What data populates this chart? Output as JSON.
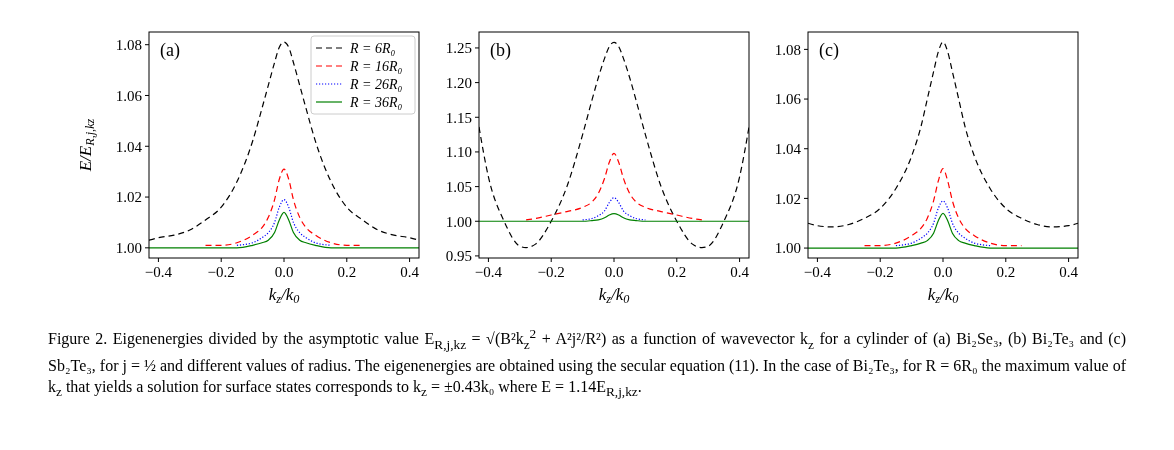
{
  "chart_data": [
    {
      "type": "line",
      "ylabel": "E/E$_{R,j,kz}$",
      "xlabel": "k$_{z}$/k$_{0}$",
      "legend": "top right",
      "annotations": [
        "(a)",
        "Figure 2.  Eigenenergies divided by the asymptotic value E$_{R,j,kz}$ = √(B²k$_{z}$$^{2}$ + A²j²/R²) as a function of wavevector k$_{z}$ for a cylinder of (a) Bi₂Se₃, (b) Bi₂Te₃ and (c) Sb₂Te₃, for j = ½ and different values of radius. The eigenenergies are obtained using the secular equation (11). In the case of Bi₂Te₃, for R = 6R₀ the maximum value of k$_{z}$ that yields a solution for surface states corresponds to k$_{z}$ = ±0.43k₀ where E = 1.14E$_{R,j,kz}$."
      ],
      "x": [
        -0.43,
        -0.4,
        -0.35,
        -0.3,
        -0.25,
        -0.2,
        -0.15,
        -0.1,
        -0.07,
        -0.05,
        -0.03,
        -0.015,
        0,
        0.015,
        0.03,
        0.05,
        0.07,
        0.1,
        0.15,
        0.2,
        0.25,
        0.3,
        0.35,
        0.4,
        0.43
      ],
      "xlim": [
        -0.43,
        0.43
      ],
      "xticks": [
        {
          "value": -0.4,
          "label": "−0.4"
        },
        {
          "value": -0.2,
          "label": "−0.2"
        },
        {
          "value": 0,
          "label": "0.0"
        },
        {
          "value": 0.2,
          "label": "0.2"
        },
        {
          "value": 0.4,
          "label": "0.4"
        }
      ],
      "ylim": [
        0.996,
        1.085
      ],
      "yticks": [
        {
          "value": 1,
          "label": "1.00"
        },
        1.02,
        1.04,
        1.06,
        1.08
      ],
      "series": [
        {
          "name": "R = 6R₀",
          "color": "#000000",
          "line_style": "dashed",
          "values": [
            1.003,
            1.004,
            1.005,
            1.007,
            1.011,
            1.016,
            1.026,
            1.042,
            1.055,
            1.064,
            1.073,
            1.079,
            1.081,
            1.079,
            1.073,
            1.064,
            1.055,
            1.042,
            1.026,
            1.016,
            1.011,
            1.007,
            1.005,
            1.004,
            1.003
          ]
        },
        {
          "name": "R = 16R₀",
          "color": "#ff0000",
          "line_style": "dashed",
          "values": [
            null,
            null,
            null,
            null,
            1.001,
            1.001,
            1.002,
            1.005,
            1.008,
            1.012,
            1.019,
            1.027,
            1.031,
            1.027,
            1.019,
            1.012,
            1.008,
            1.005,
            1.002,
            1.001,
            1.001,
            null,
            null,
            null,
            null
          ]
        },
        {
          "name": "R = 26R₀",
          "color": "#0000ff",
          "line_style": "dotted",
          "values": [
            null,
            null,
            null,
            null,
            null,
            null,
            1.001,
            1.002,
            1.004,
            1.006,
            1.01,
            1.016,
            1.019,
            1.016,
            1.01,
            1.006,
            1.004,
            1.002,
            1.001,
            null,
            null,
            null,
            null,
            null,
            null
          ]
        },
        {
          "name": "R = 36R₀",
          "color": "#008000",
          "line_style": "solid",
          "values": [
            1,
            1,
            1,
            1,
            1,
            1,
            1,
            1.001,
            1.002,
            1.003,
            1.006,
            1.011,
            1.014,
            1.011,
            1.006,
            1.003,
            1.002,
            1.001,
            1,
            1,
            1,
            1,
            1,
            1,
            1
          ]
        }
      ]
    },
    {
      "type": "line",
      "xlabel": "k$_{z}$/k$_{0}$",
      "annotations": [
        "(b)"
      ],
      "x": [
        -0.43,
        -0.4,
        -0.35,
        -0.3,
        -0.28,
        -0.25,
        -0.2,
        -0.15,
        -0.1,
        -0.07,
        -0.05,
        -0.03,
        -0.015,
        0,
        0.015,
        0.03,
        0.05,
        0.07,
        0.1,
        0.15,
        0.2,
        0.25,
        0.28,
        0.3,
        0.35,
        0.4,
        0.43
      ],
      "xlim": [
        -0.43,
        0.43
      ],
      "xticks": [
        {
          "value": -0.4,
          "label": "−0.4"
        },
        {
          "value": -0.2,
          "label": "−0.2"
        },
        {
          "value": 0,
          "label": "0.0"
        },
        {
          "value": 0.2,
          "label": "0.2"
        },
        {
          "value": 0.4,
          "label": "0.4"
        }
      ],
      "ylim": [
        0.947,
        1.273
      ],
      "yticks": [
        0.95,
        {
          "value": 1,
          "label": "1.00"
        },
        1.05,
        {
          "value": 1.1,
          "label": "1.10"
        },
        1.15,
        {
          "value": 1.2,
          "label": "1.20"
        },
        1.25
      ],
      "series": [
        {
          "color": "#000000",
          "line_style": "dashed",
          "values": [
            1.136,
            1.064,
            1.0,
            0.964,
            0.962,
            0.967,
            1.0,
            1.05,
            1.125,
            1.175,
            1.207,
            1.235,
            1.252,
            1.258,
            1.252,
            1.235,
            1.207,
            1.175,
            1.125,
            1.05,
            1.0,
            0.967,
            0.962,
            0.964,
            1.0,
            1.064,
            1.136
          ]
        },
        {
          "color": "#ff0000",
          "line_style": "dashed",
          "values": [
            null,
            null,
            null,
            null,
            1.002,
            1.004,
            1.009,
            1.014,
            1.02,
            1.028,
            1.04,
            1.062,
            1.085,
            1.098,
            1.085,
            1.062,
            1.04,
            1.028,
            1.02,
            1.014,
            1.009,
            1.004,
            1.002,
            null,
            null,
            null,
            null
          ]
        },
        {
          "color": "#0000ff",
          "line_style": "dotted",
          "values": [
            null,
            null,
            null,
            null,
            null,
            null,
            null,
            null,
            1.002,
            1.004,
            1.008,
            1.015,
            1.027,
            1.034,
            1.027,
            1.015,
            1.008,
            1.004,
            1.002,
            null,
            null,
            null,
            null,
            null,
            null,
            null,
            null
          ]
        },
        {
          "color": "#008000",
          "line_style": "solid",
          "values": [
            1,
            1,
            1,
            1,
            1,
            1,
            1,
            1,
            1,
            1.001,
            1.002,
            1.005,
            1.009,
            1.011,
            1.009,
            1.005,
            1.002,
            1.001,
            1,
            1,
            1,
            1,
            1,
            1,
            1,
            1,
            1
          ]
        }
      ]
    },
    {
      "type": "line",
      "xlabel": "k$_{z}$/k$_{0}$",
      "annotations": [
        "(c)"
      ],
      "x": [
        -0.43,
        -0.4,
        -0.35,
        -0.3,
        -0.25,
        -0.2,
        -0.15,
        -0.1,
        -0.07,
        -0.05,
        -0.03,
        -0.015,
        0,
        0.015,
        0.03,
        0.05,
        0.07,
        0.1,
        0.15,
        0.2,
        0.25,
        0.3,
        0.35,
        0.4,
        0.43
      ],
      "xlim": [
        -0.43,
        0.43
      ],
      "xticks": [
        {
          "value": -0.4,
          "label": "−0.4"
        },
        {
          "value": -0.2,
          "label": "−0.2"
        },
        {
          "value": 0,
          "label": "0.0"
        },
        {
          "value": 0.2,
          "label": "0.2"
        },
        {
          "value": 0.4,
          "label": "0.4"
        }
      ],
      "ylim": [
        0.996,
        1.087
      ],
      "yticks": [
        {
          "value": 1,
          "label": "1.00"
        },
        1.02,
        1.04,
        1.06,
        1.08
      ],
      "series": [
        {
          "color": "#000000",
          "line_style": "dashed",
          "values": [
            1.01,
            1.009,
            1.0085,
            1.0095,
            1.012,
            1.016,
            1.024,
            1.037,
            1.049,
            1.06,
            1.071,
            1.079,
            1.083,
            1.079,
            1.071,
            1.06,
            1.049,
            1.037,
            1.024,
            1.016,
            1.012,
            1.0095,
            1.0085,
            1.009,
            1.01
          ]
        },
        {
          "color": "#ff0000",
          "line_style": "dashed",
          "values": [
            null,
            null,
            null,
            null,
            1.001,
            1.001,
            1.002,
            1.005,
            1.008,
            1.012,
            1.019,
            1.027,
            1.032,
            1.027,
            1.019,
            1.012,
            1.008,
            1.005,
            1.002,
            1.001,
            1.001,
            null,
            null,
            null,
            null
          ]
        },
        {
          "color": "#0000ff",
          "line_style": "dotted",
          "values": [
            null,
            null,
            null,
            null,
            null,
            null,
            1.001,
            1.002,
            1.004,
            1.006,
            1.01,
            1.016,
            1.019,
            1.016,
            1.01,
            1.006,
            1.004,
            1.002,
            1.001,
            null,
            null,
            null,
            null,
            null,
            null
          ]
        },
        {
          "color": "#008000",
          "line_style": "solid",
          "values": [
            1,
            1,
            1,
            1,
            1,
            1,
            1,
            1.001,
            1.002,
            1.003,
            1.006,
            1.011,
            1.014,
            1.011,
            1.006,
            1.003,
            1.002,
            1.001,
            1,
            1,
            1,
            1,
            1,
            1,
            1
          ]
        }
      ]
    }
  ]
}
